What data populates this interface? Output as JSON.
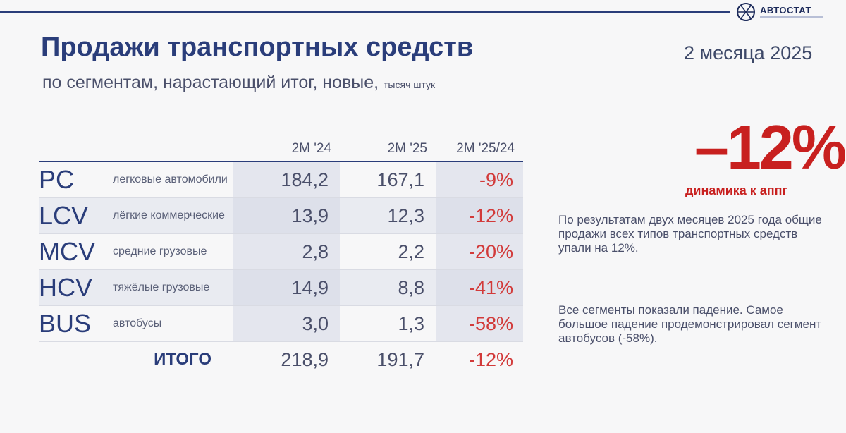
{
  "header": {
    "logo_text": "АВТОСТАТ",
    "title": "Продажи транспортных средств",
    "subtitle": "по сегментам, нарастающий итог, новые,",
    "unit": "тысяч штук",
    "period": "2 месяца 2025"
  },
  "table": {
    "columns": [
      "2M '24",
      "2M '25",
      "2M '25/24"
    ],
    "rows": [
      {
        "code": "PC",
        "desc": "легковые автомобили",
        "v24": "184,2",
        "v25": "167,1",
        "pct": "-9%"
      },
      {
        "code": "LCV",
        "desc": "лёгкие коммерческие",
        "v24": "13,9",
        "v25": "12,3",
        "pct": "-12%"
      },
      {
        "code": "MCV",
        "desc": "средние грузовые",
        "v24": "2,8",
        "v25": "2,2",
        "pct": "-20%"
      },
      {
        "code": "HCV",
        "desc": "тяжёлые грузовые",
        "v24": "14,9",
        "v25": "8,8",
        "pct": "-41%"
      },
      {
        "code": "BUS",
        "desc": "автобусы",
        "v24": "3,0",
        "v25": "1,3",
        "pct": "-58%"
      }
    ],
    "total": {
      "label": "ИТОГО",
      "v24": "218,9",
      "v25": "191,7",
      "pct": "-12%"
    }
  },
  "summary": {
    "big_value": "–12%",
    "big_label": "динамика к аппг",
    "note1": "По результатам двух месяцев 2025 года общие продажи всех типов транспортных средств упали на 12%.",
    "note2": "Все сегменты показали падение. Самое большое падение продемонстрировал сегмент автобусов (-58%)."
  },
  "colors": {
    "accent_blue": "#2a3d7a",
    "accent_red": "#c8201f"
  }
}
